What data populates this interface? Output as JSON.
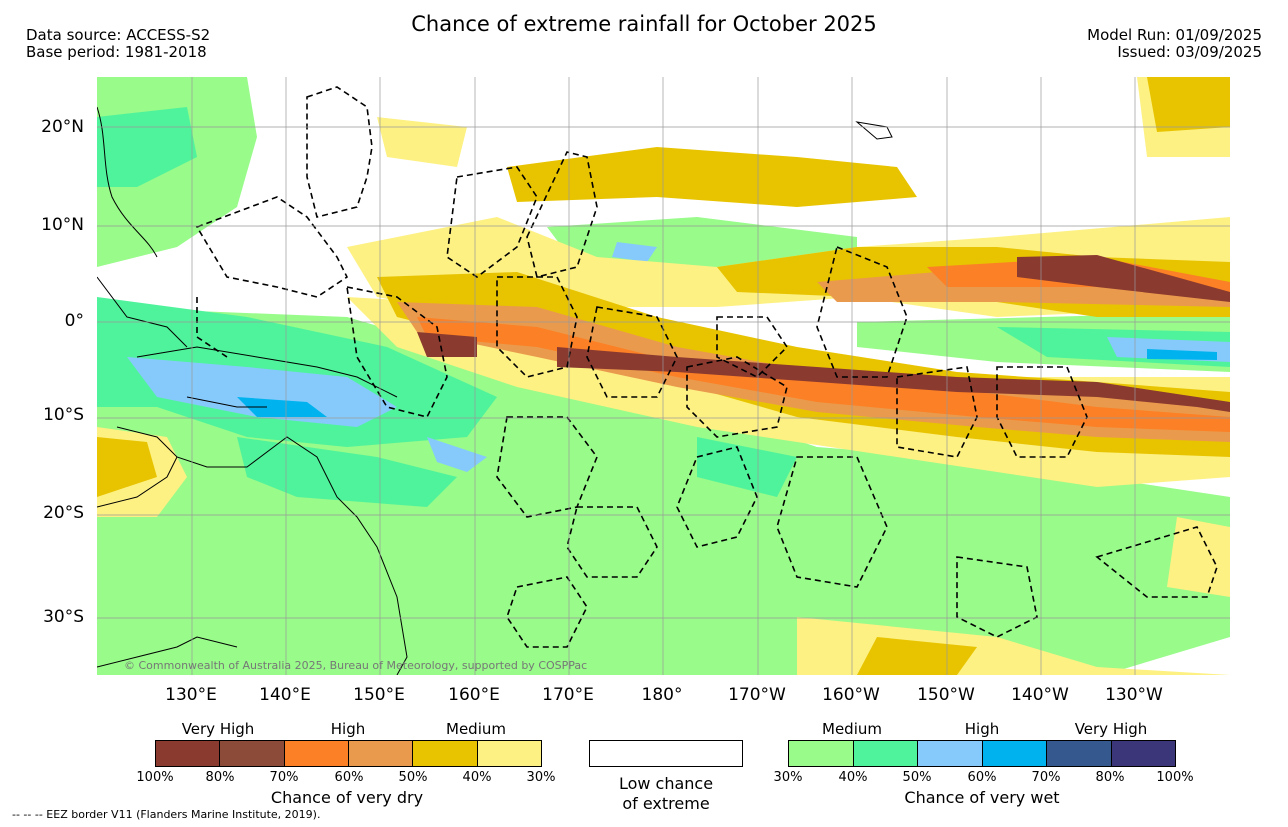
{
  "title": "Chance of extreme rainfall for October 2025",
  "meta_left": [
    "Data source: ACCESS-S2",
    "Base period: 1981-2018"
  ],
  "meta_right": [
    "Model Run: 01/09/2025",
    "Issued: 03/09/2025"
  ],
  "lat_labels": [
    "20°N",
    "10°N",
    "0°",
    "10°S",
    "20°S",
    "30°S"
  ],
  "lon_labels": [
    "130°E",
    "140°E",
    "150°E",
    "160°E",
    "170°E",
    "180°",
    "170°W",
    "160°W",
    "150°W",
    "140°W",
    "130°W"
  ],
  "credit": "© Commonwealth of Australia 2025, Bureau of Meteorology, supported by COSPPac",
  "dry_legend": {
    "categories": [
      "Very High",
      "High",
      "Medium"
    ],
    "ticks": [
      "100%",
      "80%",
      "70%",
      "60%",
      "50%",
      "40%",
      "30%"
    ],
    "title": "Chance of very dry",
    "colors": [
      "#8b3a2f",
      "#8c4a38",
      "#fc8025",
      "#ea9a4c",
      "#e8c400",
      "#fdf183"
    ]
  },
  "low_legend": {
    "line1": "Low chance",
    "line2": "of extreme"
  },
  "wet_legend": {
    "categories": [
      "Medium",
      "High",
      "Very High"
    ],
    "ticks": [
      "30%",
      "40%",
      "50%",
      "60%",
      "70%",
      "80%",
      "100%"
    ],
    "title": "Chance of very wet",
    "colors": [
      "#98fb8a",
      "#4ff39b",
      "#86cafc",
      "#00b3ee",
      "#35598f",
      "#3b3679"
    ]
  },
  "footnote": "-- -- -- EEZ border V11 (Flanders Marine Institute, 2019)."
}
